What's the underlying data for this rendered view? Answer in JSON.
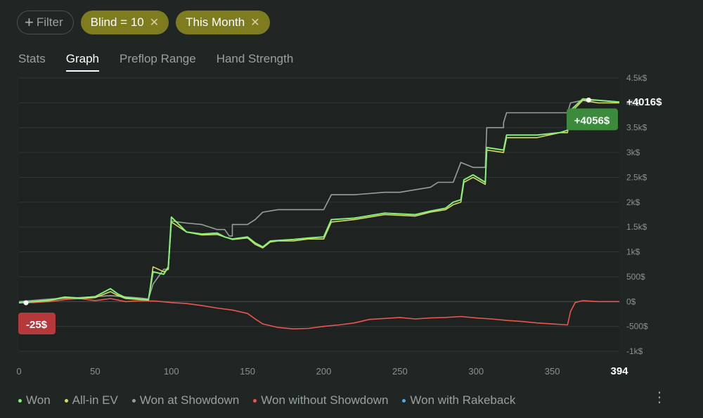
{
  "filters": {
    "add_label": "Filter",
    "chips": [
      {
        "label": "Blind = 10"
      },
      {
        "label": "This Month"
      }
    ]
  },
  "tabs": [
    {
      "label": "Stats",
      "active": false
    },
    {
      "label": "Graph",
      "active": true
    },
    {
      "label": "Preflop Range",
      "active": false
    },
    {
      "label": "Hand Strength",
      "active": false
    }
  ],
  "chart_data": {
    "type": "line",
    "xlim": [
      0,
      394
    ],
    "ylim": [
      -1000,
      4500
    ],
    "x_ticks": [
      0,
      50,
      100,
      150,
      200,
      250,
      300,
      350
    ],
    "x_end_label": "394",
    "y_ticks": [
      {
        "v": 4500,
        "label": "4.5k$"
      },
      {
        "v": 4000,
        "label": "4k$"
      },
      {
        "v": 3500,
        "label": "3.5k$"
      },
      {
        "v": 3000,
        "label": "3k$"
      },
      {
        "v": 2500,
        "label": "2.5k$"
      },
      {
        "v": 2000,
        "label": "2k$"
      },
      {
        "v": 1500,
        "label": "1.5k$"
      },
      {
        "v": 1000,
        "label": "1k$"
      },
      {
        "v": 500,
        "label": "500$"
      },
      {
        "v": 0,
        "label": "0$"
      },
      {
        "v": -500,
        "label": "-500$"
      },
      {
        "v": -1000,
        "label": "-1k$"
      }
    ],
    "grid": true,
    "legend_position": "bottom",
    "series": [
      {
        "name": "Won without Showdown",
        "color": "#e8564f",
        "points": [
          [
            0,
            -25
          ],
          [
            10,
            -20
          ],
          [
            20,
            0
          ],
          [
            30,
            40
          ],
          [
            40,
            60
          ],
          [
            50,
            20
          ],
          [
            60,
            60
          ],
          [
            70,
            0
          ],
          [
            80,
            20
          ],
          [
            90,
            10
          ],
          [
            100,
            -20
          ],
          [
            110,
            -40
          ],
          [
            120,
            -80
          ],
          [
            130,
            -130
          ],
          [
            140,
            -170
          ],
          [
            150,
            -240
          ],
          [
            155,
            -350
          ],
          [
            160,
            -450
          ],
          [
            170,
            -520
          ],
          [
            180,
            -550
          ],
          [
            190,
            -540
          ],
          [
            200,
            -500
          ],
          [
            210,
            -470
          ],
          [
            220,
            -430
          ],
          [
            230,
            -360
          ],
          [
            240,
            -340
          ],
          [
            250,
            -320
          ],
          [
            260,
            -350
          ],
          [
            270,
            -330
          ],
          [
            280,
            -320
          ],
          [
            290,
            -300
          ],
          [
            300,
            -330
          ],
          [
            310,
            -350
          ],
          [
            320,
            -380
          ],
          [
            330,
            -400
          ],
          [
            340,
            -430
          ],
          [
            350,
            -450
          ],
          [
            360,
            -470
          ],
          [
            362,
            -200
          ],
          [
            365,
            -20
          ],
          [
            370,
            20
          ],
          [
            380,
            0
          ],
          [
            394,
            0
          ]
        ]
      },
      {
        "name": "Won at Showdown",
        "color": "#9a9e9b",
        "points": [
          [
            0,
            0
          ],
          [
            20,
            50
          ],
          [
            40,
            80
          ],
          [
            60,
            120
          ],
          [
            80,
            70
          ],
          [
            85,
            50
          ],
          [
            88,
            350
          ],
          [
            95,
            650
          ],
          [
            98,
            650
          ],
          [
            100,
            1620
          ],
          [
            110,
            1580
          ],
          [
            120,
            1550
          ],
          [
            130,
            1450
          ],
          [
            135,
            1450
          ],
          [
            138,
            1320
          ],
          [
            140,
            1320
          ],
          [
            140,
            1550
          ],
          [
            150,
            1550
          ],
          [
            155,
            1650
          ],
          [
            160,
            1800
          ],
          [
            170,
            1850
          ],
          [
            180,
            1850
          ],
          [
            200,
            1850
          ],
          [
            205,
            2150
          ],
          [
            220,
            2150
          ],
          [
            240,
            2200
          ],
          [
            250,
            2200
          ],
          [
            260,
            2250
          ],
          [
            270,
            2300
          ],
          [
            275,
            2400
          ],
          [
            285,
            2400
          ],
          [
            290,
            2800
          ],
          [
            298,
            2700
          ],
          [
            306,
            2700
          ],
          [
            307,
            3500
          ],
          [
            318,
            3500
          ],
          [
            318,
            3600
          ],
          [
            320,
            3800
          ],
          [
            340,
            3800
          ],
          [
            355,
            3800
          ],
          [
            360,
            3800
          ],
          [
            362,
            4000
          ],
          [
            370,
            4050
          ],
          [
            380,
            4050
          ],
          [
            394,
            4016
          ]
        ]
      },
      {
        "name": "All-in EV",
        "color": "#d9da63",
        "points": [
          [
            0,
            -25
          ],
          [
            20,
            20
          ],
          [
            30,
            80
          ],
          [
            40,
            60
          ],
          [
            50,
            80
          ],
          [
            60,
            200
          ],
          [
            65,
            120
          ],
          [
            70,
            60
          ],
          [
            80,
            40
          ],
          [
            85,
            30
          ],
          [
            88,
            700
          ],
          [
            95,
            600
          ],
          [
            98,
            650
          ],
          [
            100,
            1600
          ],
          [
            110,
            1400
          ],
          [
            120,
            1340
          ],
          [
            130,
            1350
          ],
          [
            135,
            1300
          ],
          [
            140,
            1250
          ],
          [
            150,
            1280
          ],
          [
            155,
            1150
          ],
          [
            160,
            1080
          ],
          [
            165,
            1200
          ],
          [
            170,
            1220
          ],
          [
            180,
            1220
          ],
          [
            190,
            1260
          ],
          [
            200,
            1260
          ],
          [
            205,
            1600
          ],
          [
            220,
            1650
          ],
          [
            240,
            1750
          ],
          [
            260,
            1720
          ],
          [
            270,
            1800
          ],
          [
            280,
            1850
          ],
          [
            285,
            1950
          ],
          [
            290,
            2000
          ],
          [
            292,
            2400
          ],
          [
            298,
            2500
          ],
          [
            306,
            2360
          ],
          [
            307,
            3050
          ],
          [
            318,
            3000
          ],
          [
            320,
            3300
          ],
          [
            340,
            3300
          ],
          [
            355,
            3400
          ],
          [
            360,
            3400
          ],
          [
            362,
            3800
          ],
          [
            370,
            4050
          ],
          [
            380,
            4000
          ],
          [
            394,
            4000
          ]
        ]
      },
      {
        "name": "Won",
        "color": "#86f07b",
        "points": [
          [
            0,
            -25
          ],
          [
            20,
            30
          ],
          [
            30,
            90
          ],
          [
            40,
            70
          ],
          [
            50,
            100
          ],
          [
            60,
            260
          ],
          [
            65,
            150
          ],
          [
            70,
            80
          ],
          [
            80,
            50
          ],
          [
            85,
            40
          ],
          [
            88,
            600
          ],
          [
            95,
            550
          ],
          [
            98,
            700
          ],
          [
            100,
            1700
          ],
          [
            110,
            1400
          ],
          [
            120,
            1360
          ],
          [
            130,
            1380
          ],
          [
            135,
            1300
          ],
          [
            140,
            1260
          ],
          [
            150,
            1300
          ],
          [
            155,
            1180
          ],
          [
            160,
            1100
          ],
          [
            165,
            1220
          ],
          [
            170,
            1230
          ],
          [
            180,
            1250
          ],
          [
            190,
            1280
          ],
          [
            200,
            1300
          ],
          [
            205,
            1650
          ],
          [
            220,
            1680
          ],
          [
            240,
            1780
          ],
          [
            260,
            1750
          ],
          [
            270,
            1820
          ],
          [
            280,
            1880
          ],
          [
            285,
            2000
          ],
          [
            290,
            2050
          ],
          [
            292,
            2450
          ],
          [
            298,
            2550
          ],
          [
            306,
            2400
          ],
          [
            307,
            3100
          ],
          [
            318,
            3050
          ],
          [
            320,
            3350
          ],
          [
            340,
            3350
          ],
          [
            355,
            3400
          ],
          [
            360,
            3450
          ],
          [
            362,
            3850
          ],
          [
            370,
            4080
          ],
          [
            380,
            4050
          ],
          [
            394,
            4016
          ]
        ]
      }
    ],
    "labels": {
      "start": {
        "text": "-25$",
        "x": 0,
        "y": -25,
        "color": "#b5393a"
      },
      "end_won": {
        "text": "+4016$",
        "x": 394,
        "y": 4016
      },
      "max": {
        "text": "+4056$",
        "x": 384,
        "y": 4056,
        "color": "#3c8a3c"
      }
    }
  },
  "legend": [
    {
      "label": "Won",
      "color": "#86f07b"
    },
    {
      "label": "All-in EV",
      "color": "#d9da63"
    },
    {
      "label": "Won at Showdown",
      "color": "#9a9e9b"
    },
    {
      "label": "Won without Showdown",
      "color": "#e8564f"
    },
    {
      "label": "Won with Rakeback",
      "color": "#5aa6e0"
    }
  ],
  "menu_icon": "more-vertical-icon"
}
